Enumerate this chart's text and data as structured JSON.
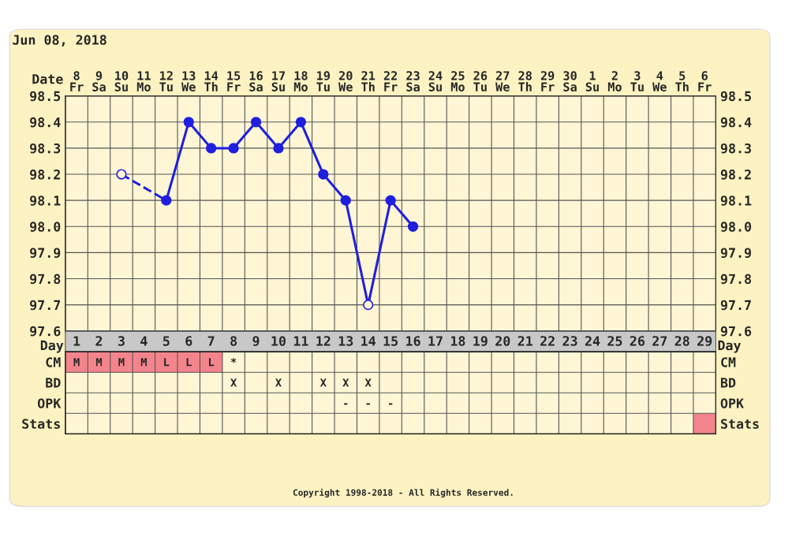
{
  "chart_data": [
    {
      "type": "line",
      "title": "Jun 08, 2018",
      "xlabel": "Date",
      "categories": [
        "8\nFr",
        "9\nSa",
        "10\nSu",
        "11\nMo",
        "12\nTu",
        "13\nWe",
        "14\nTh",
        "15\nFr",
        "16\nSa",
        "17\nSu",
        "18\nMo",
        "19\nTu",
        "20\nWe",
        "21\nTh",
        "22\nFr",
        "23\nSa",
        "24\nSu",
        "25\nMo",
        "26\nTu",
        "27\nWe",
        "28\nTh",
        "29\nFr",
        "30\nSa",
        "1\nSu",
        "2\nMo",
        "3\nTu",
        "4\nWe",
        "5\nTh",
        "6\nFr"
      ],
      "ylim": [
        97.6,
        98.5
      ],
      "yticks": [
        97.6,
        97.7,
        97.8,
        97.9,
        {
          "value": 98,
          "label": "98.0"
        },
        98.1,
        98.2,
        98.3,
        98.4,
        98.5
      ],
      "y2lim": [
        97.6,
        98.5
      ],
      "y2ticks": [
        97.6,
        97.7,
        97.8,
        97.9,
        {
          "value": 98,
          "label": "98.0"
        },
        98.1,
        98.2,
        98.3,
        98.4,
        98.5
      ],
      "grid": true,
      "series": [
        {
          "type": "line",
          "line_style": "solid",
          "color": "#1f1fe0",
          "values": [
            null,
            null,
            null,
            null,
            98.1,
            98.4,
            98.3,
            98.3,
            98.4,
            98.3,
            98.4,
            98.2,
            98.1,
            97.7,
            98.1,
            98.0,
            null,
            null,
            null,
            null,
            null,
            null,
            null,
            null,
            null,
            null,
            null,
            null,
            null
          ]
        },
        {
          "type": "line",
          "line_style": "dashed",
          "color": "#1f1fe0",
          "values": [
            null,
            null,
            98.2,
            null,
            98.1,
            null,
            null,
            null,
            null,
            null,
            null,
            null,
            null,
            null,
            null,
            null,
            null,
            null,
            null,
            null,
            null,
            null,
            null,
            null,
            null,
            null,
            null,
            null,
            null
          ]
        },
        {
          "type": "scatter",
          "marker": "circle",
          "color": "#1f1fe0",
          "values": [
            null,
            null,
            null,
            null,
            98.1,
            98.4,
            98.3,
            98.3,
            98.4,
            98.3,
            98.4,
            98.2,
            98.1,
            null,
            98.1,
            98.0,
            null,
            null,
            null,
            null,
            null,
            null,
            null,
            null,
            null,
            null,
            null,
            null,
            null
          ]
        },
        {
          "type": "scatter",
          "marker": "circle",
          "color": "#1f1fe0",
          "colors": [
            null,
            null,
            "#fff6d5",
            null,
            null,
            null,
            null,
            null,
            null,
            null,
            null,
            null,
            null,
            "#fff6d5",
            null,
            null,
            null,
            null,
            null,
            null,
            null,
            null,
            null,
            null,
            null,
            null,
            null,
            null,
            null
          ],
          "values": [
            null,
            null,
            98.2,
            null,
            null,
            null,
            null,
            null,
            null,
            null,
            null,
            null,
            null,
            97.7,
            null,
            null,
            null,
            null,
            null,
            null,
            null,
            null,
            null,
            null,
            null,
            null,
            null,
            null,
            null
          ]
        }
      ]
    },
    {
      "type": "heatmap",
      "xlabel": "Day",
      "x2label": "Day",
      "categories": [
        "1",
        "2",
        "3",
        "4",
        "5",
        "6",
        "7",
        "8",
        "9",
        "10",
        "11",
        "12",
        "13",
        "14",
        "15",
        "16",
        "17",
        "18",
        "19",
        "20",
        "21",
        "22",
        "23",
        "24",
        "25",
        "26",
        "27",
        "28",
        "29"
      ],
      "y_categories": [
        "CM",
        "BD",
        "OPK",
        "Stats"
      ],
      "y2_categories": [
        "CM",
        "BD",
        "OPK",
        "Stats"
      ],
      "cells": [
        [
          null,
          null,
          null,
          null,
          null,
          null,
          null,
          null,
          null,
          null,
          null,
          null,
          null,
          null,
          null,
          null,
          null,
          null,
          null,
          null,
          null,
          null,
          null,
          null,
          null,
          null,
          null,
          null,
          null
        ],
        [
          null,
          null,
          null,
          null,
          null,
          null,
          null,
          null,
          null,
          null,
          null,
          null,
          null,
          null,
          null,
          null,
          null,
          null,
          null,
          null,
          null,
          null,
          null,
          null,
          null,
          null,
          null,
          null,
          null
        ],
        [
          null,
          null,
          null,
          null,
          null,
          null,
          null,
          null,
          null,
          null,
          null,
          null,
          null,
          null,
          null,
          null,
          null,
          null,
          null,
          null,
          null,
          null,
          null,
          null,
          null,
          null,
          null,
          null,
          null
        ],
        [
          null,
          null,
          null,
          null,
          null,
          null,
          null,
          null,
          null,
          null,
          null,
          null,
          null,
          null,
          null,
          null,
          null,
          null,
          null,
          null,
          null,
          null,
          null,
          null,
          null,
          null,
          null,
          null,
          null
        ]
      ],
      "cell_labels": [
        [
          "M",
          "M",
          "M",
          "M",
          "L",
          "L",
          "L",
          "*",
          null,
          null,
          null,
          null,
          null,
          null,
          null,
          null,
          null,
          null,
          null,
          null,
          null,
          null,
          null,
          null,
          null,
          null,
          null,
          null,
          null
        ],
        [
          null,
          null,
          null,
          null,
          null,
          null,
          null,
          "X",
          null,
          "X",
          null,
          "X",
          "X",
          "X",
          null,
          null,
          null,
          null,
          null,
          null,
          null,
          null,
          null,
          null,
          null,
          null,
          null,
          null,
          null
        ],
        [
          null,
          null,
          null,
          null,
          null,
          null,
          null,
          null,
          null,
          null,
          null,
          null,
          "-",
          "-",
          "-",
          null,
          null,
          null,
          null,
          null,
          null,
          null,
          null,
          null,
          null,
          null,
          null,
          null,
          null
        ],
        [
          null,
          null,
          null,
          null,
          null,
          null,
          null,
          null,
          null,
          null,
          null,
          null,
          null,
          null,
          null,
          null,
          null,
          null,
          null,
          null,
          null,
          null,
          null,
          null,
          null,
          null,
          null,
          null,
          null
        ]
      ],
      "colors": [
        [
          "#f4848c",
          "#f4848c",
          "#f4848c",
          "#f4848c",
          "#f4848c",
          "#f4848c",
          "#f4848c",
          null,
          null,
          null,
          null,
          null,
          null,
          null,
          null,
          null,
          null,
          null,
          null,
          null,
          null,
          null,
          null,
          null,
          null,
          null,
          null,
          null,
          null
        ],
        [
          null,
          null,
          null,
          null,
          null,
          null,
          null,
          null,
          null,
          null,
          null,
          null,
          null,
          null,
          null,
          null,
          null,
          null,
          null,
          null,
          null,
          null,
          null,
          null,
          null,
          null,
          null,
          null,
          null
        ],
        [
          null,
          null,
          null,
          null,
          null,
          null,
          null,
          null,
          null,
          null,
          null,
          null,
          null,
          null,
          null,
          null,
          null,
          null,
          null,
          null,
          null,
          null,
          null,
          null,
          null,
          null,
          null,
          null,
          null
        ],
        [
          null,
          null,
          null,
          null,
          null,
          null,
          null,
          null,
          null,
          null,
          null,
          null,
          null,
          null,
          null,
          null,
          null,
          null,
          null,
          null,
          null,
          null,
          null,
          null,
          null,
          null,
          null,
          null,
          "#f4848c"
        ]
      ],
      "annotations": [
        "Copyright 1998-2018 - All Rights Reserved."
      ]
    }
  ]
}
